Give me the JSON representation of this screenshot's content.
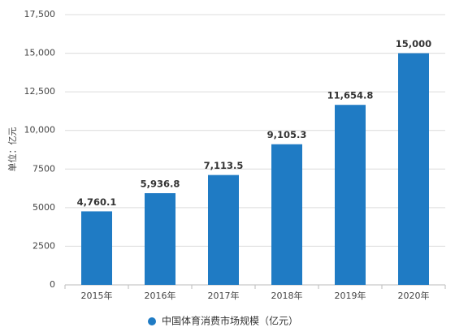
{
  "chart_data": {
    "type": "bar",
    "y_label": "单位：亿元",
    "categories": [
      "2015年",
      "2016年",
      "2017年",
      "2018年",
      "2019年",
      "2020年"
    ],
    "series": [
      {
        "name": "中国体育消费市场规模（亿元）",
        "color": "#1f7bc4",
        "values": [
          4760.1,
          5936.8,
          7113.5,
          9105.3,
          11654.8,
          15000
        ],
        "value_labels": [
          "4,760.1",
          "5,936.8",
          "7,113.5",
          "9,105.3",
          "11,654.8",
          "15,000"
        ]
      }
    ],
    "ylim": [
      0,
      17500
    ],
    "yticks": [
      0,
      2500,
      5000,
      7500,
      {
        "value": 10000,
        "label": "10,000"
      },
      {
        "value": 12500,
        "label": "12,500"
      },
      {
        "value": 15000,
        "label": "15,000"
      },
      {
        "value": 17500,
        "label": "17,500"
      }
    ],
    "grid": true
  }
}
